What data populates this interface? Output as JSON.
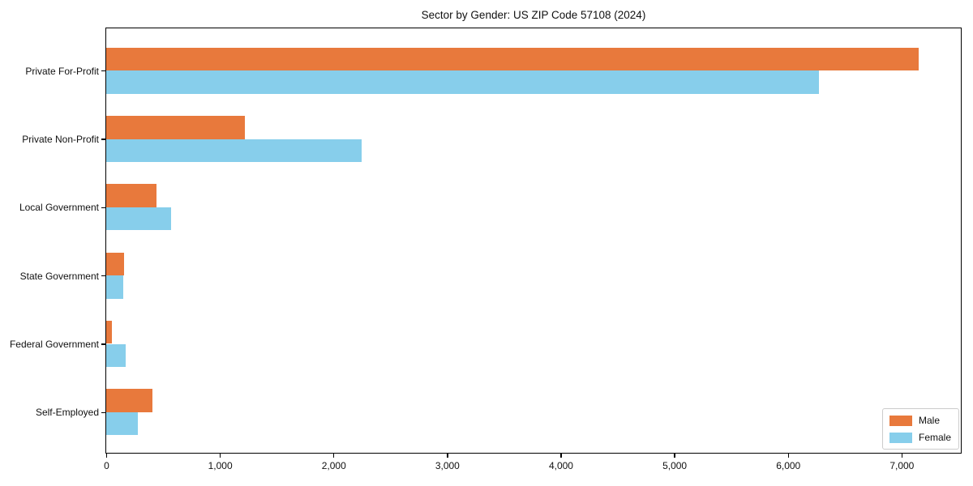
{
  "title": "Sector by Gender: US ZIP Code 57108 (2024)",
  "chart_data": {
    "type": "bar",
    "orientation": "horizontal",
    "title": "Sector by Gender: US ZIP Code 57108 (2024)",
    "categories": [
      "Private For-Profit",
      "Private Non-Profit",
      "Local Government",
      "State Government",
      "Federal Government",
      "Self-Employed"
    ],
    "series": [
      {
        "name": "Male",
        "color": "#e8793c",
        "values": [
          7150,
          1220,
          440,
          160,
          50,
          410
        ]
      },
      {
        "name": "Female",
        "color": "#87ceeb",
        "values": [
          6270,
          2250,
          570,
          150,
          170,
          280
        ]
      }
    ],
    "xlabel": "",
    "ylabel": "",
    "xlim": [
      0,
      7515
    ],
    "x_ticks": [
      {
        "value": 0,
        "label": "0"
      },
      {
        "value": 1000,
        "label": "1,000"
      },
      {
        "value": 2000,
        "label": "2,000"
      },
      {
        "value": 3000,
        "label": "3,000"
      },
      {
        "value": 4000,
        "label": "4,000"
      },
      {
        "value": 5000,
        "label": "5,000"
      },
      {
        "value": 6000,
        "label": "6,000"
      },
      {
        "value": 7000,
        "label": "7,000"
      }
    ],
    "grid": false,
    "legend_position": "lower right",
    "axis_color": "#000000",
    "background_color": "#ffffff"
  }
}
